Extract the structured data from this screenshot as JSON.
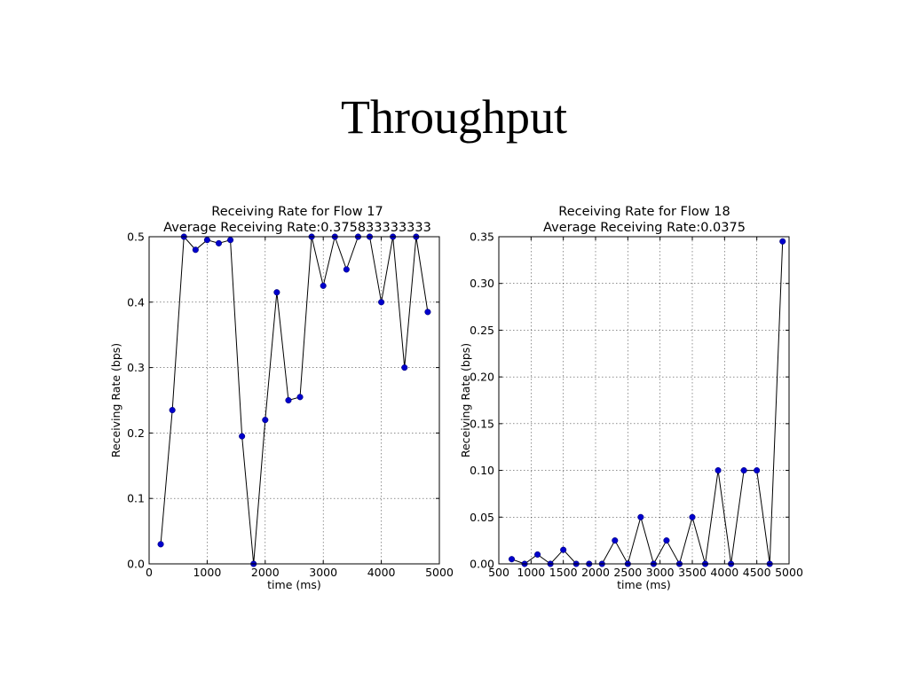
{
  "slide": {
    "title": "Throughput"
  },
  "chart_data": [
    {
      "type": "line",
      "title": "Receiving Rate for Flow 17",
      "subtitle": "Average Receiving Rate:0.375833333333",
      "xlabel": "time (ms)",
      "ylabel": "Receiving Rate (bps)",
      "xlim": [
        0,
        5000
      ],
      "ylim": [
        0,
        0.5
      ],
      "xticks": [
        0,
        1000,
        2000,
        3000,
        4000,
        5000
      ],
      "xtick_labels": [
        "0",
        "1000",
        "2000",
        "3000",
        "4000",
        "5000"
      ],
      "yticks": [
        0,
        0.1,
        0.2,
        0.3,
        0.4,
        0.5
      ],
      "ytick_labels": [
        "0.0",
        "0.1",
        "0.2",
        "0.3",
        "0.4",
        "0.5"
      ],
      "grid": true,
      "line_color": "#000000",
      "marker_color": "#0000cc",
      "x": [
        200,
        400,
        600,
        800,
        1000,
        1200,
        1400,
        1600,
        1800,
        2000,
        2200,
        2400,
        2600,
        2800,
        3000,
        3200,
        3400,
        3600,
        3800,
        4000,
        4200,
        4400,
        4600,
        4800
      ],
      "y": [
        0.03,
        0.235,
        0.5,
        0.48,
        0.495,
        0.49,
        0.495,
        0.195,
        0.0,
        0.22,
        0.415,
        0.25,
        0.255,
        0.5,
        0.425,
        0.5,
        0.45,
        0.5,
        0.5,
        0.4,
        0.5,
        0.3,
        0.5,
        0.385
      ]
    },
    {
      "type": "line",
      "title": "Receiving Rate for Flow 18",
      "subtitle": "Average Receiving Rate:0.0375",
      "xlabel": "time (ms)",
      "ylabel": "Receiving Rate (bps)",
      "xlim": [
        500,
        5000
      ],
      "ylim": [
        0,
        0.35
      ],
      "xticks": [
        500,
        1000,
        1500,
        2000,
        2500,
        3000,
        3500,
        4000,
        4500,
        5000
      ],
      "xtick_labels": [
        "500",
        "1000",
        "1500",
        "2000",
        "2500",
        "3000",
        "3500",
        "4000",
        "4500",
        "5000"
      ],
      "yticks": [
        0,
        0.05,
        0.1,
        0.15,
        0.2,
        0.25,
        0.3,
        0.35
      ],
      "ytick_labels": [
        "0.00",
        "0.05",
        "0.10",
        "0.15",
        "0.20",
        "0.25",
        "0.30",
        "0.35"
      ],
      "grid": true,
      "line_color": "#000000",
      "marker_color": "#0000cc",
      "x": [
        700,
        900,
        1100,
        1300,
        1500,
        1700,
        1900,
        2100,
        2300,
        2500,
        2700,
        2900,
        3100,
        3300,
        3500,
        3700,
        3900,
        4100,
        4300,
        4500,
        4700,
        4900
      ],
      "y": [
        0.005,
        0.0,
        0.01,
        0.0,
        0.015,
        0.0,
        0.0,
        0.0,
        0.025,
        0.0,
        0.05,
        0.0,
        0.025,
        0.0,
        0.05,
        0.0,
        0.1,
        0.0,
        0.1,
        0.1,
        0.0,
        0.345
      ]
    }
  ]
}
